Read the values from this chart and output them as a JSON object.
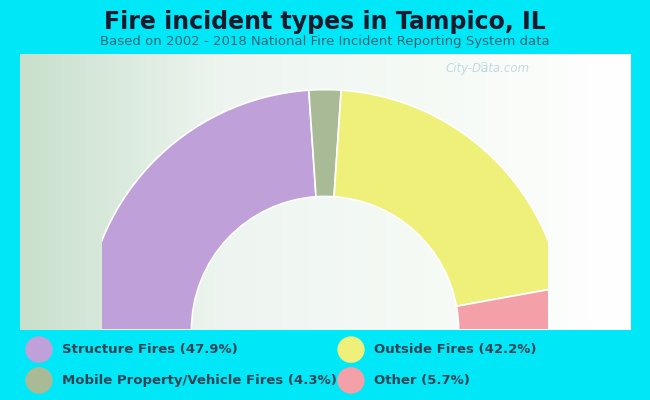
{
  "title": "Fire incident types in Tampico, IL",
  "subtitle": "Based on 2002 - 2018 National Fire Incident Reporting System data",
  "background_color": "#00e8f8",
  "chart_bg_left": "#d8ead2",
  "chart_bg_right": "#f0f8f0",
  "segments": [
    {
      "label": "Structure Fires (47.9%)",
      "value": 47.9,
      "color": "#c0a0d8"
    },
    {
      "label": "Mobile Property/Vehicle Fires (4.3%)",
      "value": 4.3,
      "color": "#a8bb96"
    },
    {
      "label": "Outside Fires (42.2%)",
      "value": 42.2,
      "color": "#eef07a"
    },
    {
      "label": "Other (5.7%)",
      "value": 5.7,
      "color": "#f4a0a8"
    }
  ],
  "legend_entries": [
    {
      "label": "Structure Fires (47.9%)",
      "color": "#c0a0d8"
    },
    {
      "label": "Outside Fires (42.2%)",
      "color": "#eef07a"
    },
    {
      "label": "Mobile Property/Vehicle Fires (4.3%)",
      "color": "#a8bb96"
    },
    {
      "label": "Other (5.7%)",
      "color": "#f4a0a8"
    }
  ],
  "watermark": "City-Data.com",
  "title_fontsize": 17,
  "subtitle_fontsize": 9.5,
  "legend_fontsize": 9.5
}
